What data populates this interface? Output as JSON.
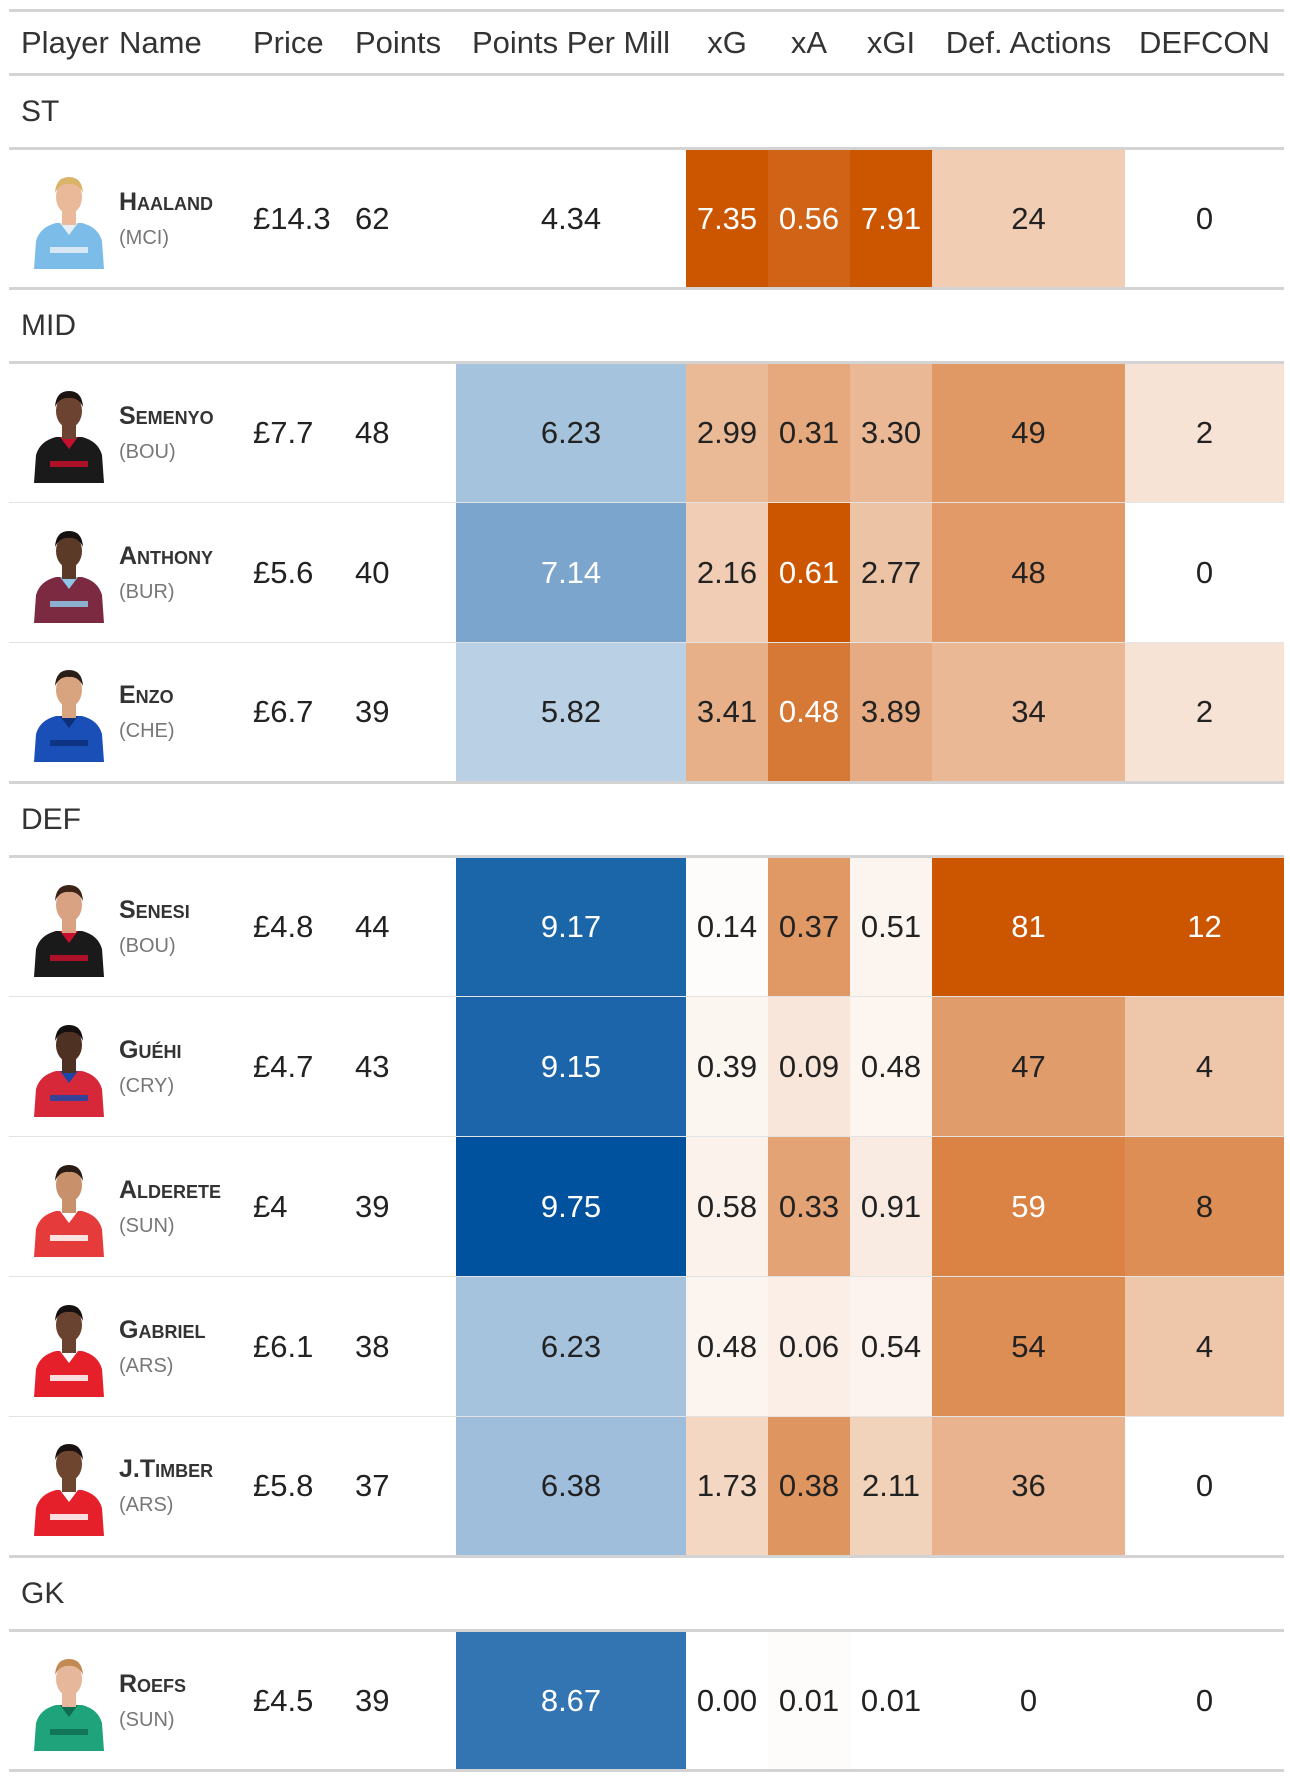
{
  "headers": {
    "player": "Player",
    "name": "Name",
    "price": "Price",
    "points": "Points",
    "ppm": "Points Per Mill",
    "xg": "xG",
    "xa": "xA",
    "xgi": "xGI",
    "def": "Def. Actions",
    "defcon": "DEFCON"
  },
  "groups": [
    {
      "label": "ST",
      "players": [
        {
          "name": "Haaland",
          "team": "(MCI)",
          "price": "£14.3",
          "points": "62",
          "ppm": "4.34",
          "xg": "7.35",
          "xa": "0.56",
          "xgi": "7.91",
          "def": "24",
          "defcon": "0",
          "kit": {
            "shirt": "#7bbde8",
            "trim": "#e8eef5",
            "skin": "#e9b99a",
            "hair": "#d9b46a"
          }
        }
      ]
    },
    {
      "label": "MID",
      "players": [
        {
          "name": "Semenyo",
          "team": "(BOU)",
          "price": "£7.7",
          "points": "48",
          "ppm": "6.23",
          "xg": "2.99",
          "xa": "0.31",
          "xgi": "3.30",
          "def": "49",
          "defcon": "2",
          "kit": {
            "shirt": "#1a1a1a",
            "trim": "#c8102e",
            "skin": "#6b4330",
            "hair": "#1c1410"
          }
        },
        {
          "name": "Anthony",
          "team": "(BUR)",
          "price": "£5.6",
          "points": "40",
          "ppm": "7.14",
          "xg": "2.16",
          "xa": "0.61",
          "xgi": "2.77",
          "def": "48",
          "defcon": "0",
          "kit": {
            "shirt": "#7b2a42",
            "trim": "#8fc6e8",
            "skin": "#5c3a28",
            "hair": "#161110"
          }
        },
        {
          "name": "Enzo",
          "team": "(CHE)",
          "price": "£6.7",
          "points": "39",
          "ppm": "5.82",
          "xg": "3.41",
          "xa": "0.48",
          "xgi": "3.89",
          "def": "34",
          "defcon": "2",
          "kit": {
            "shirt": "#1b4fb8",
            "trim": "#0d2f7a",
            "skin": "#d8a47f",
            "hair": "#2b1e16"
          }
        }
      ]
    },
    {
      "label": "DEF",
      "players": [
        {
          "name": "Senesi",
          "team": "(BOU)",
          "price": "£4.8",
          "points": "44",
          "ppm": "9.17",
          "xg": "0.14",
          "xa": "0.37",
          "xgi": "0.51",
          "def": "81",
          "defcon": "12",
          "kit": {
            "shirt": "#1a1a1a",
            "trim": "#c8102e",
            "skin": "#d9a383",
            "hair": "#3b2417"
          }
        },
        {
          "name": "Guéhi",
          "team": "(CRY)",
          "price": "£4.7",
          "points": "43",
          "ppm": "9.15",
          "xg": "0.39",
          "xa": "0.09",
          "xgi": "0.48",
          "def": "47",
          "defcon": "4",
          "kit": {
            "shirt": "#d62839",
            "trim": "#1b45a8",
            "skin": "#4f3123",
            "hair": "#141010"
          }
        },
        {
          "name": "Alderete",
          "team": "(SUN)",
          "price": "£4",
          "points": "39",
          "ppm": "9.75",
          "xg": "0.58",
          "xa": "0.33",
          "xgi": "0.91",
          "def": "59",
          "defcon": "8",
          "kit": {
            "shirt": "#e63b3b",
            "trim": "#ffffff",
            "skin": "#c9906c",
            "hair": "#2a1c14"
          }
        },
        {
          "name": "Gabriel",
          "team": "(ARS)",
          "price": "£6.1",
          "points": "38",
          "ppm": "6.23",
          "xg": "0.48",
          "xa": "0.06",
          "xgi": "0.54",
          "def": "54",
          "defcon": "4",
          "kit": {
            "shirt": "#e5202a",
            "trim": "#ffffff",
            "skin": "#6a4330",
            "hair": "#161110"
          }
        },
        {
          "name": "J.Timber",
          "team": "(ARS)",
          "price": "£5.8",
          "points": "37",
          "ppm": "6.38",
          "xg": "1.73",
          "xa": "0.38",
          "xgi": "2.11",
          "def": "36",
          "defcon": "0",
          "kit": {
            "shirt": "#e5202a",
            "trim": "#ffffff",
            "skin": "#6e4630",
            "hair": "#1a1210"
          }
        }
      ]
    },
    {
      "label": "GK",
      "players": [
        {
          "name": "Roefs",
          "team": "(SUN)",
          "price": "£4.5",
          "points": "39",
          "ppm": "8.67",
          "xg": "0.00",
          "xa": "0.01",
          "xgi": "0.01",
          "def": "0",
          "defcon": "0",
          "kit": {
            "shirt": "#1fa37a",
            "trim": "#0f6e52",
            "skin": "#e6b79a",
            "hair": "#c08a52"
          }
        }
      ]
    }
  ],
  "colors": {
    "ppm_scale": {
      "min": 4.34,
      "max": 9.75,
      "low": "#ffffff",
      "high": "#00529f"
    },
    "orange_high": "#cc5500",
    "orange_low": "#ffffff",
    "text_dark": "#222222",
    "text_light": "#ffffff"
  }
}
